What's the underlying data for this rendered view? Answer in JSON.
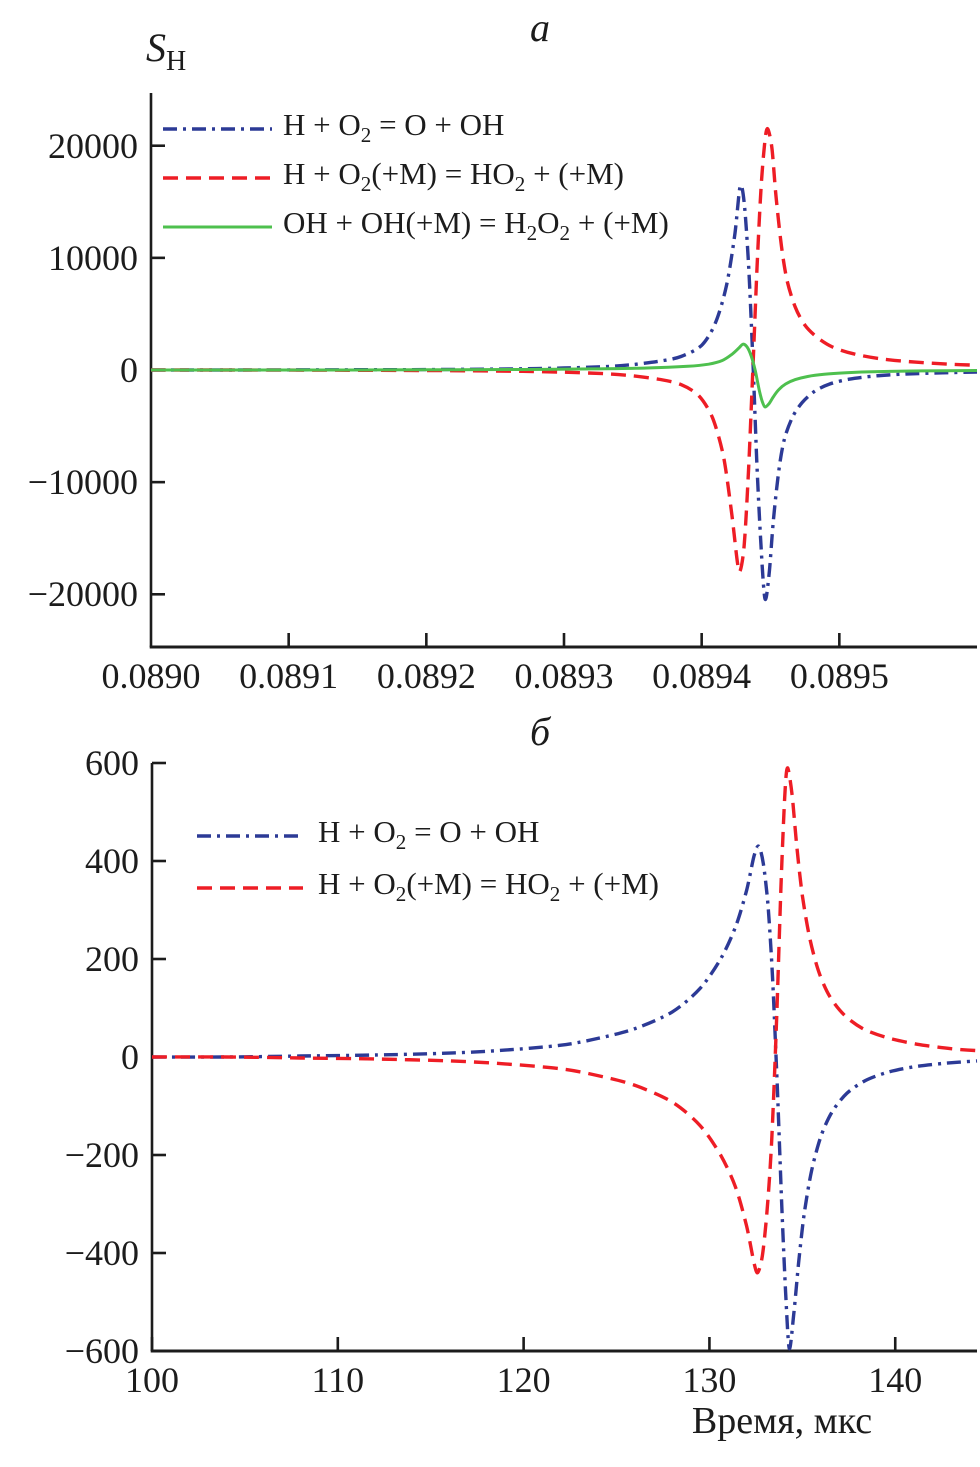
{
  "figure": {
    "background": "#ffffff",
    "axis_color": "#1c1c1c"
  },
  "chart_data": [
    {
      "panel": "a",
      "type": "line",
      "title": "а",
      "ylabel": {
        "main": "S",
        "sub": "H"
      },
      "xlabel": "",
      "xlim": [
        0.089,
        0.0896
      ],
      "ylim": [
        -24700,
        24700
      ],
      "grid": false,
      "legend_position": "top-left",
      "xticks": {
        "values": [
          0.089,
          0.0891,
          0.0892,
          0.0893,
          0.0894,
          0.0895
        ],
        "labels": [
          "0.0890",
          "0.0891",
          "0.0892",
          "0.0893",
          "0.0894",
          "0.0895"
        ]
      },
      "yticks": {
        "values": [
          20000,
          10000,
          0,
          -10000,
          -20000
        ],
        "labels": [
          "20000",
          "10000",
          "0",
          "−10000",
          "−20000"
        ]
      },
      "series": [
        {
          "name": "H + O2 = O + OH",
          "color": "#2c3a96",
          "dash": "dashdot",
          "points": [
            [
              0.089,
              0
            ],
            [
              0.08906,
              0
            ],
            [
              0.08912,
              15
            ],
            [
              0.08918,
              30
            ],
            [
              0.08923,
              60
            ],
            [
              0.08927,
              110
            ],
            [
              0.0893,
              180
            ],
            [
              0.08933,
              300
            ],
            [
              0.08935,
              480
            ],
            [
              0.08937,
              800
            ],
            [
              0.089385,
              1200
            ],
            [
              0.0894,
              2200
            ],
            [
              0.08941,
              4200
            ],
            [
              0.089418,
              7500
            ],
            [
              0.089424,
              12000
            ],
            [
              0.089428,
              16400
            ],
            [
              0.089431,
              14800
            ],
            [
              0.089434,
              9500
            ],
            [
              0.089437,
              1500
            ],
            [
              0.08944,
              -8000
            ],
            [
              0.089443,
              -15500
            ],
            [
              0.089446,
              -20400
            ],
            [
              0.089449,
              -18200
            ],
            [
              0.089452,
              -13500
            ],
            [
              0.089456,
              -9000
            ],
            [
              0.08946,
              -6200
            ],
            [
              0.089466,
              -4200
            ],
            [
              0.089473,
              -2900
            ],
            [
              0.089482,
              -1900
            ],
            [
              0.089493,
              -1250
            ],
            [
              0.089507,
              -820
            ],
            [
              0.089525,
              -540
            ],
            [
              0.089548,
              -360
            ],
            [
              0.089575,
              -250
            ],
            [
              0.0896,
              -190
            ]
          ]
        },
        {
          "name": "H + O2(+M) = HO2 + (+M)",
          "color": "#ee1d25",
          "dash": "dashed",
          "points": [
            [
              0.089,
              0
            ],
            [
              0.08906,
              0
            ],
            [
              0.08912,
              -15
            ],
            [
              0.08918,
              -35
            ],
            [
              0.08923,
              -70
            ],
            [
              0.08927,
              -120
            ],
            [
              0.0893,
              -200
            ],
            [
              0.08933,
              -330
            ],
            [
              0.08935,
              -520
            ],
            [
              0.08937,
              -850
            ],
            [
              0.089385,
              -1300
            ],
            [
              0.089398,
              -2300
            ],
            [
              0.089408,
              -4300
            ],
            [
              0.089416,
              -7800
            ],
            [
              0.089422,
              -13000
            ],
            [
              0.089426,
              -17200
            ],
            [
              0.089428,
              -17900
            ],
            [
              0.089431,
              -15500
            ],
            [
              0.089434,
              -9000
            ],
            [
              0.089437,
              -500
            ],
            [
              0.08944,
              8500
            ],
            [
              0.089443,
              16000
            ],
            [
              0.089446,
              20500
            ],
            [
              0.089448,
              21500
            ],
            [
              0.089451,
              19800
            ],
            [
              0.089454,
              15500
            ],
            [
              0.089458,
              11000
            ],
            [
              0.089462,
              8000
            ],
            [
              0.089468,
              5600
            ],
            [
              0.089475,
              4000
            ],
            [
              0.089484,
              2900
            ],
            [
              0.089495,
              2050
            ],
            [
              0.08951,
              1450
            ],
            [
              0.08953,
              1000
            ],
            [
              0.089555,
              700
            ],
            [
              0.08958,
              520
            ],
            [
              0.0896,
              420
            ]
          ]
        },
        {
          "name": "OH + OH(+M) = H2O2 + (+M)",
          "color": "#4ec04e",
          "dash": "solid",
          "points": [
            [
              0.089,
              0
            ],
            [
              0.0891,
              0
            ],
            [
              0.0892,
              15
            ],
            [
              0.08927,
              45
            ],
            [
              0.08932,
              95
            ],
            [
              0.08936,
              180
            ],
            [
              0.08939,
              330
            ],
            [
              0.089405,
              520
            ],
            [
              0.089415,
              850
            ],
            [
              0.089422,
              1400
            ],
            [
              0.089427,
              1950
            ],
            [
              0.08943,
              2300
            ],
            [
              0.089433,
              2050
            ],
            [
              0.089436,
              1250
            ],
            [
              0.089439,
              -100
            ],
            [
              0.089442,
              -1900
            ],
            [
              0.089444,
              -2800
            ],
            [
              0.089446,
              -3300
            ],
            [
              0.089449,
              -3000
            ],
            [
              0.089452,
              -2400
            ],
            [
              0.089456,
              -1750
            ],
            [
              0.089461,
              -1250
            ],
            [
              0.089468,
              -860
            ],
            [
              0.089477,
              -580
            ],
            [
              0.089489,
              -380
            ],
            [
              0.089505,
              -240
            ],
            [
              0.089528,
              -140
            ],
            [
              0.08956,
              -80
            ],
            [
              0.0896,
              -45
            ]
          ]
        }
      ]
    },
    {
      "panel": "b",
      "type": "line",
      "title": "б",
      "ylabel": null,
      "xlabel": "Время, мкс",
      "xlim": [
        100,
        144.4
      ],
      "ylim": [
        -600,
        600
      ],
      "grid": false,
      "legend_position": "top-left",
      "xticks": {
        "values": [
          100,
          110,
          120,
          130,
          140
        ],
        "labels": [
          "100",
          "110",
          "120",
          "130",
          "140"
        ]
      },
      "yticks": {
        "values": [
          600,
          400,
          200,
          0,
          -200,
          -400,
          -600
        ],
        "labels": [
          "600",
          "400",
          "200",
          "0",
          "−200",
          "−400",
          "−600"
        ]
      },
      "series": [
        {
          "name": "H + O2 = O + OH",
          "color": "#2c3a96",
          "dash": "dashdot",
          "points": [
            [
              100,
              0
            ],
            [
              104,
              0
            ],
            [
              108,
              2
            ],
            [
              112,
              4
            ],
            [
              116,
              8
            ],
            [
              119,
              14
            ],
            [
              122,
              24
            ],
            [
              124,
              38
            ],
            [
              126,
              58
            ],
            [
              128,
              92
            ],
            [
              129.5,
              140
            ],
            [
              130.6,
              200
            ],
            [
              131.4,
              265
            ],
            [
              132.0,
              340
            ],
            [
              132.4,
              410
            ],
            [
              132.65,
              430
            ],
            [
              132.9,
              395
            ],
            [
              133.15,
              310
            ],
            [
              133.4,
              160
            ],
            [
              133.65,
              -60
            ],
            [
              133.9,
              -310
            ],
            [
              134.1,
              -480
            ],
            [
              134.3,
              -595
            ],
            [
              134.55,
              -520
            ],
            [
              134.8,
              -420
            ],
            [
              135.1,
              -320
            ],
            [
              135.5,
              -232
            ],
            [
              136.0,
              -162
            ],
            [
              136.6,
              -112
            ],
            [
              137.4,
              -74
            ],
            [
              138.4,
              -48
            ],
            [
              139.6,
              -31
            ],
            [
              141.0,
              -20
            ],
            [
              142.6,
              -13
            ],
            [
              144.4,
              -8
            ]
          ]
        },
        {
          "name": "H + O2(+M) = HO2 + (+M)",
          "color": "#ee1d25",
          "dash": "dashed",
          "points": [
            [
              100,
              0
            ],
            [
              104,
              0
            ],
            [
              108,
              -2
            ],
            [
              112,
              -4
            ],
            [
              116,
              -8
            ],
            [
              119,
              -14
            ],
            [
              122,
              -24
            ],
            [
              124,
              -38
            ],
            [
              126,
              -58
            ],
            [
              128,
              -92
            ],
            [
              129.5,
              -140
            ],
            [
              130.6,
              -200
            ],
            [
              131.4,
              -265
            ],
            [
              132.0,
              -345
            ],
            [
              132.4,
              -420
            ],
            [
              132.6,
              -440
            ],
            [
              132.85,
              -405
            ],
            [
              133.1,
              -315
            ],
            [
              133.35,
              -170
            ],
            [
              133.6,
              60
            ],
            [
              133.85,
              350
            ],
            [
              134.05,
              530
            ],
            [
              134.2,
              590
            ],
            [
              134.45,
              535
            ],
            [
              134.7,
              430
            ],
            [
              135.0,
              330
            ],
            [
              135.4,
              242
            ],
            [
              135.9,
              172
            ],
            [
              136.5,
              122
            ],
            [
              137.3,
              84
            ],
            [
              138.3,
              57
            ],
            [
              139.6,
              39
            ],
            [
              141.2,
              26
            ],
            [
              143.0,
              17
            ],
            [
              144.4,
              13
            ]
          ]
        }
      ]
    }
  ]
}
